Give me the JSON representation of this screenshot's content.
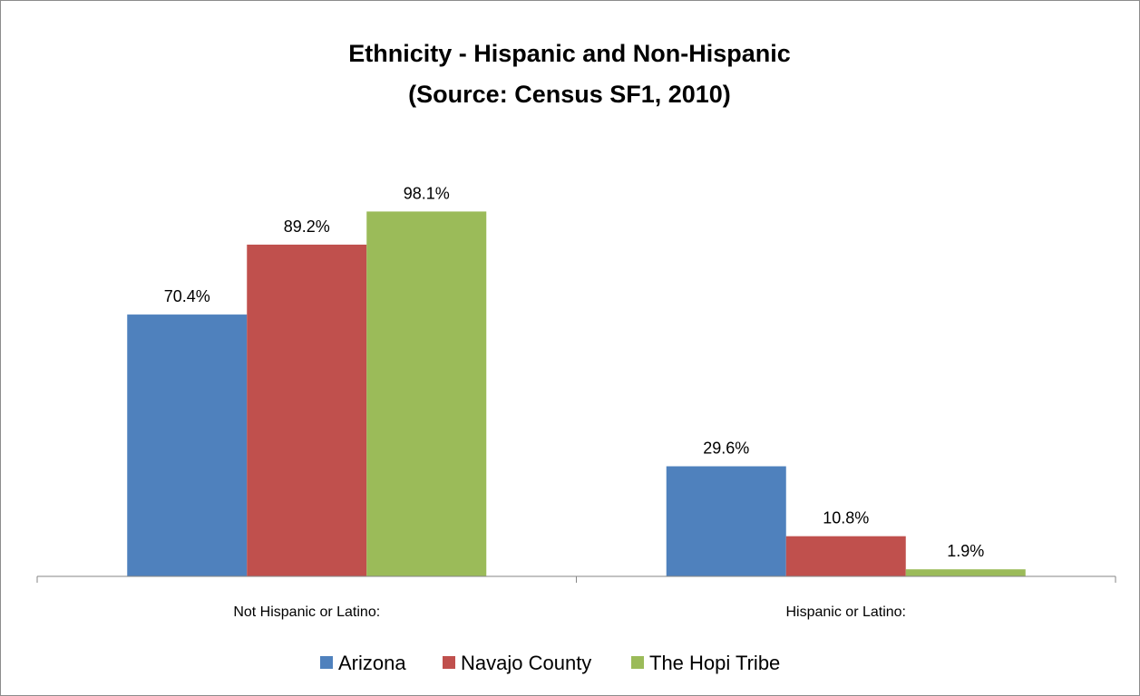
{
  "chart_data": {
    "type": "bar",
    "title": "Ethnicity - Hispanic and Non-Hispanic",
    "subtitle": "(Source: Census SF1, 2010)",
    "categories": [
      "Not Hispanic or Latino:",
      "Hispanic or Latino:"
    ],
    "series": [
      {
        "name": "Arizona",
        "values": [
          70.4,
          29.6
        ],
        "labels": [
          "70.4%",
          "29.6%"
        ],
        "color": "#4f81bd"
      },
      {
        "name": "Navajo County",
        "values": [
          89.2,
          10.8
        ],
        "labels": [
          "89.2%",
          "10.8%"
        ],
        "color": "#c0504d"
      },
      {
        "name": "The Hopi Tribe",
        "values": [
          98.1,
          1.9
        ],
        "labels": [
          "98.1%",
          "1.9%"
        ],
        "color": "#9bbb59"
      }
    ],
    "ylim": [
      0,
      100
    ],
    "grid": false,
    "legend_position": "bottom"
  }
}
